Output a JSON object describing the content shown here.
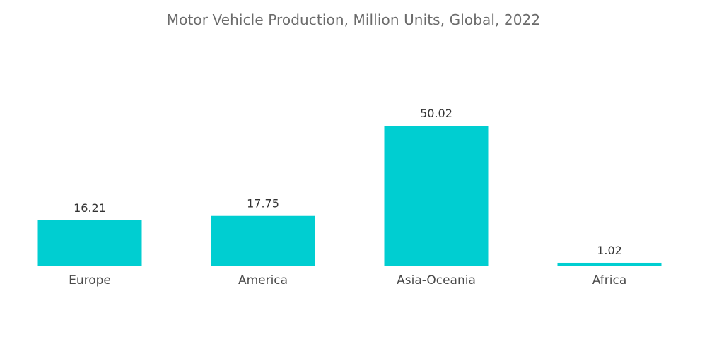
{
  "chart_data": {
    "type": "bar",
    "title": "Motor Vehicle Production, Million Units, Global, 2022",
    "categories": [
      "Europe",
      "America",
      "Asia-Oceania",
      "Africa"
    ],
    "values": [
      16.21,
      17.75,
      50.02,
      1.02
    ],
    "value_labels": [
      "16.21",
      "17.75",
      "50.02",
      "1.02"
    ],
    "xlabel": "",
    "ylabel": "",
    "ylim": [
      0,
      50.02
    ],
    "grid": false,
    "legend": "none",
    "bar_color": "#00CED1"
  }
}
